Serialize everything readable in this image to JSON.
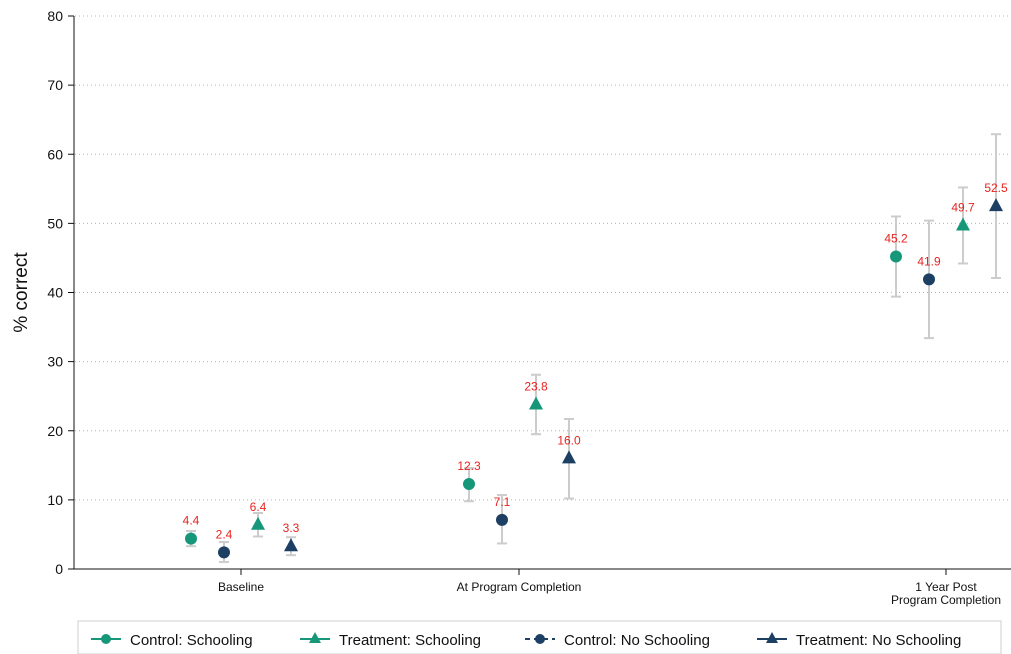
{
  "chart_data": {
    "type": "scatter",
    "ylabel": "% correct",
    "ylim": [
      0,
      80
    ],
    "yticks": [
      0,
      10,
      20,
      30,
      40,
      50,
      60,
      70,
      80
    ],
    "grid": true,
    "legend_position": "bottom",
    "categories": [
      [
        "Baseline"
      ],
      [
        "At Program Completion"
      ],
      [
        "1 Year Post",
        "Program Completion"
      ]
    ],
    "label_color": "#e8231f",
    "errorbar_color": "#cccccc",
    "series": [
      {
        "name": "Control: Schooling",
        "marker": "circle",
        "color": "#17977a",
        "values": [
          4.4,
          12.3,
          45.2
        ],
        "labels": [
          "4.4",
          "12.3",
          "45.2"
        ],
        "ci_low": [
          3.3,
          9.8,
          39.4
        ],
        "ci_high": [
          5.5,
          14.6,
          51.0
        ]
      },
      {
        "name": "Control: No Schooling",
        "marker": "circle",
        "color": "#1c3f63",
        "values": [
          2.4,
          7.1,
          41.9
        ],
        "labels": [
          "2.4",
          "7.1",
          "41.9"
        ],
        "ci_low": [
          1.0,
          3.7,
          33.4
        ],
        "ci_high": [
          3.9,
          10.7,
          50.4
        ]
      },
      {
        "name": "Treatment: Schooling",
        "marker": "triangle",
        "color": "#17977a",
        "values": [
          6.4,
          23.8,
          49.7
        ],
        "labels": [
          "6.4",
          "23.8",
          "49.7"
        ],
        "ci_low": [
          4.7,
          19.5,
          44.2
        ],
        "ci_high": [
          8.1,
          28.1,
          55.2
        ]
      },
      {
        "name": "Treatment: No Schooling",
        "marker": "triangle",
        "color": "#1c3f63",
        "values": [
          3.3,
          16.0,
          52.5
        ],
        "labels": [
          "3.3",
          "16.0",
          "52.5"
        ],
        "ci_low": [
          2.0,
          10.2,
          42.1
        ],
        "ci_high": [
          4.6,
          21.7,
          62.9
        ]
      }
    ],
    "legend": [
      {
        "name": "Control: Schooling",
        "marker": "circle",
        "color": "#17977a",
        "line": "solid"
      },
      {
        "name": "Treatment: Schooling",
        "marker": "triangle",
        "color": "#17977a",
        "line": "solid"
      },
      {
        "name": "Control: No Schooling",
        "marker": "circle",
        "color": "#1c3f63",
        "line": "dashed"
      },
      {
        "name": "Treatment: No Schooling",
        "marker": "triangle",
        "color": "#1c3f63",
        "line": "solid"
      }
    ]
  }
}
